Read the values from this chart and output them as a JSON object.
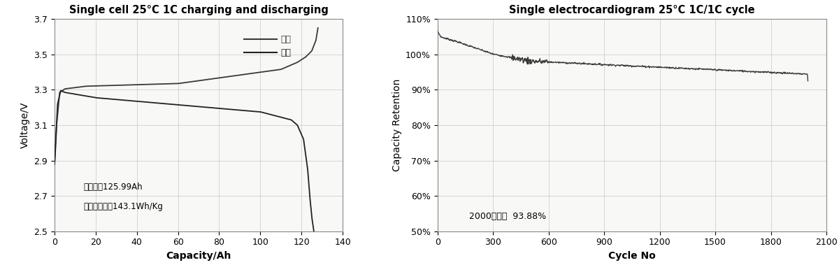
{
  "left_title": "Single cell 25°C 1C charging and discharging",
  "right_title": "Single electrocardiogram 25°C 1C/1C cycle",
  "left_xlabel": "Capacity/Ah",
  "left_ylabel": "Voltage/V",
  "right_xlabel": "Cycle No",
  "right_ylabel": "Capacity Retention",
  "left_xlim": [
    0,
    140
  ],
  "left_ylim": [
    2.5,
    3.7
  ],
  "left_xticks": [
    0,
    20,
    40,
    60,
    80,
    100,
    120,
    140
  ],
  "left_yticks": [
    2.5,
    2.7,
    2.9,
    3.1,
    3.3,
    3.5,
    3.7
  ],
  "right_xlim": [
    0,
    2100
  ],
  "right_ylim": [
    50,
    110
  ],
  "right_xticks": [
    0,
    300,
    600,
    900,
    1200,
    1500,
    1800,
    2100
  ],
  "right_yticks": [
    50,
    60,
    70,
    80,
    90,
    100,
    110
  ],
  "annotation1": "放电容量125.99Ah",
  "annotation2": "质量能量密度143.1Wh/Kg",
  "annotation3": "2000周循环  93.88%",
  "line_color": "#3a3a3a",
  "bg_color": "#ffffff",
  "plot_bg": "#f8f8f6",
  "grid_color": "#c8c8c8",
  "legend_charge": "充电",
  "legend_discharge": "放电"
}
